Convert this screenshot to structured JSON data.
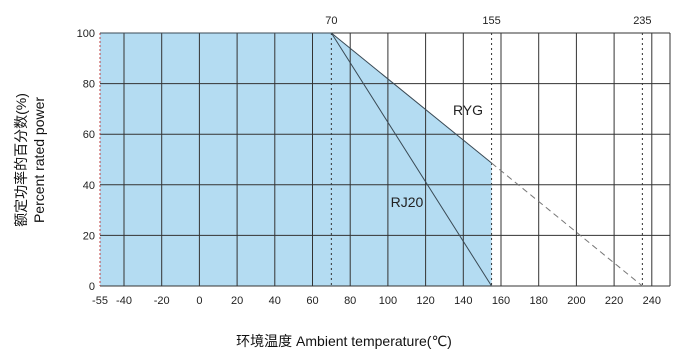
{
  "chart_data": {
    "type": "line",
    "title": "",
    "xlabel": "环境温度 Ambient temperature(℃)",
    "ylabel_line1": "额定功率的百分数(%)",
    "ylabel_line2": "Percent rated power",
    "xlim": [
      -55,
      240
    ],
    "ylim": [
      0,
      100
    ],
    "x_ticks": [
      "-55",
      "-40",
      "-20",
      "0",
      "20",
      "40",
      "60",
      "80",
      "100",
      "120",
      "140",
      "160",
      "180",
      "200",
      "220",
      "240"
    ],
    "y_ticks": [
      "0",
      "20",
      "40",
      "60",
      "80",
      "100"
    ],
    "top_ticks": [
      "70",
      "155",
      "235"
    ],
    "grid": true,
    "series": [
      {
        "name": "RYG",
        "x": [
          -55,
          70,
          155
        ],
        "y": [
          100,
          100,
          48.6
        ],
        "extension": {
          "x": [
            155,
            235
          ],
          "y": [
            48.6,
            0
          ]
        },
        "fill_color": "#b4dcf2"
      },
      {
        "name": "RJ20",
        "x": [
          -55,
          70,
          155
        ],
        "y": [
          100,
          100,
          0
        ]
      }
    ],
    "colors": {
      "fill": "#b4dcf2",
      "line": "#3a4a55",
      "grid": "#333333"
    }
  }
}
